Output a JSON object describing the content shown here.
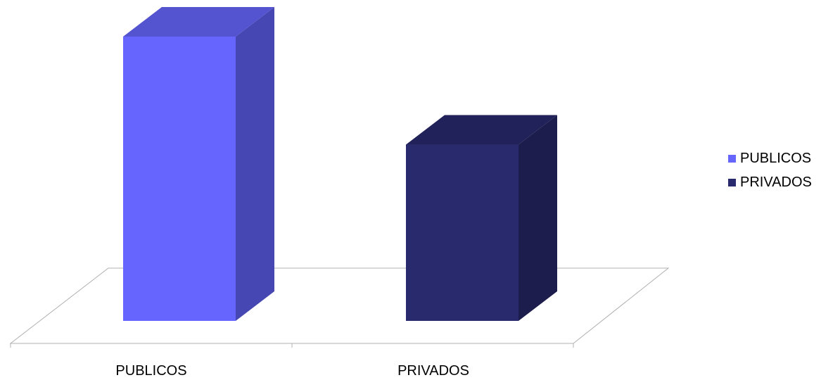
{
  "chart_data": {
    "type": "bar",
    "categories": [
      "PUBLICOS",
      "PRIVADOS"
    ],
    "series": [
      {
        "name": "PUBLICOS",
        "values": [
          100,
          null
        ],
        "color": "#6666ff"
      },
      {
        "name": "PRIVADOS",
        "values": [
          null,
          62
        ],
        "color": "#29296e"
      }
    ],
    "ylim": [
      0,
      100
    ],
    "grid": false,
    "legend": "right",
    "style": "3d-column"
  }
}
